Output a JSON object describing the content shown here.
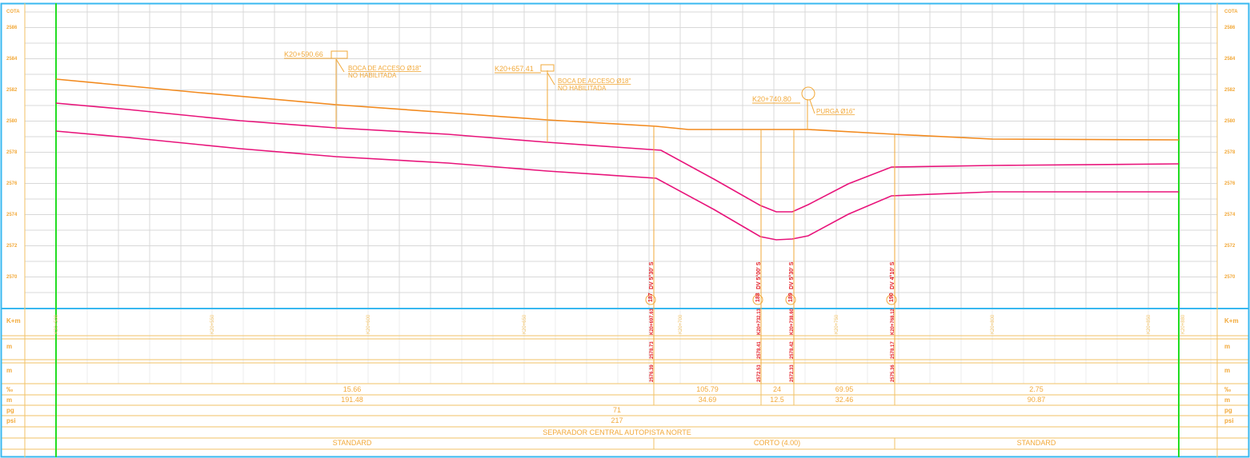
{
  "colors": {
    "frame": "#38b8f0",
    "grid": "#d8d8d8",
    "axis_text": "#f2a93a",
    "boundary": "#22dd22",
    "terrain": "#f28a1e",
    "pipe": "#e8137a",
    "annotation": "#f2a93a",
    "vertex_label": "#e31b23",
    "table": "#f2c266"
  },
  "axis": {
    "cota_label": "COTA",
    "elevations": [
      "2586",
      "2584",
      "2582",
      "2580",
      "2578",
      "2576",
      "2574",
      "2572",
      "2570"
    ]
  },
  "annotations": [
    {
      "chainage": "K20+590.66",
      "line1": "BOCA DE ACCESO Ø18\"",
      "line2": "NO HABILITADA"
    },
    {
      "chainage": "K20+657.41",
      "line1": "BOCA DE ACCESO Ø18\"",
      "line2": "NO HABILITADA"
    },
    {
      "chainage": "K20+740.80",
      "line1": "PURGA Ø16\"",
      "line2": ""
    }
  ],
  "vertices": [
    {
      "number": "187",
      "deflection": "DV 5°30' S",
      "chainage": "K20+697.63",
      "elev_a": "2578.73",
      "elev_b": "2576.39"
    },
    {
      "number": "188",
      "deflection": "DV 5°00' S",
      "chainage": "K20+732.13",
      "elev_a": "2578.41",
      "elev_b": "2572.53"
    },
    {
      "number": "189",
      "deflection": "DV 5°30' S",
      "chainage": "K20+738.60",
      "elev_a": "2578.42",
      "elev_b": "2572.33"
    },
    {
      "number": "190",
      "deflection": "DV 4°10' S",
      "chainage": "K20+768.12",
      "elev_a": "2578.17",
      "elev_b": "2575.36"
    }
  ],
  "stations": [
    "K20+500",
    "K20+550",
    "K20+600",
    "K20+650",
    "K20+700",
    "K20+750",
    "K20+800",
    "K20+850",
    "K20+880"
  ],
  "table": {
    "row_labels": [
      "K+m",
      "m",
      "m",
      "‰",
      "m",
      "pg",
      "psi",
      "",
      ""
    ],
    "slopes": [
      "15.66",
      "105.79",
      "24",
      "69.95",
      "2.75"
    ],
    "lengths": [
      "191.48",
      "34.69",
      "12.5",
      "32.46",
      "90.87"
    ],
    "diameter": "71",
    "pressure": "217",
    "location": "SEPARADOR CENTRAL AUTOPISTA NORTE",
    "types": [
      "STANDARD",
      "CORTO (4.00)",
      "STANDARD"
    ]
  }
}
